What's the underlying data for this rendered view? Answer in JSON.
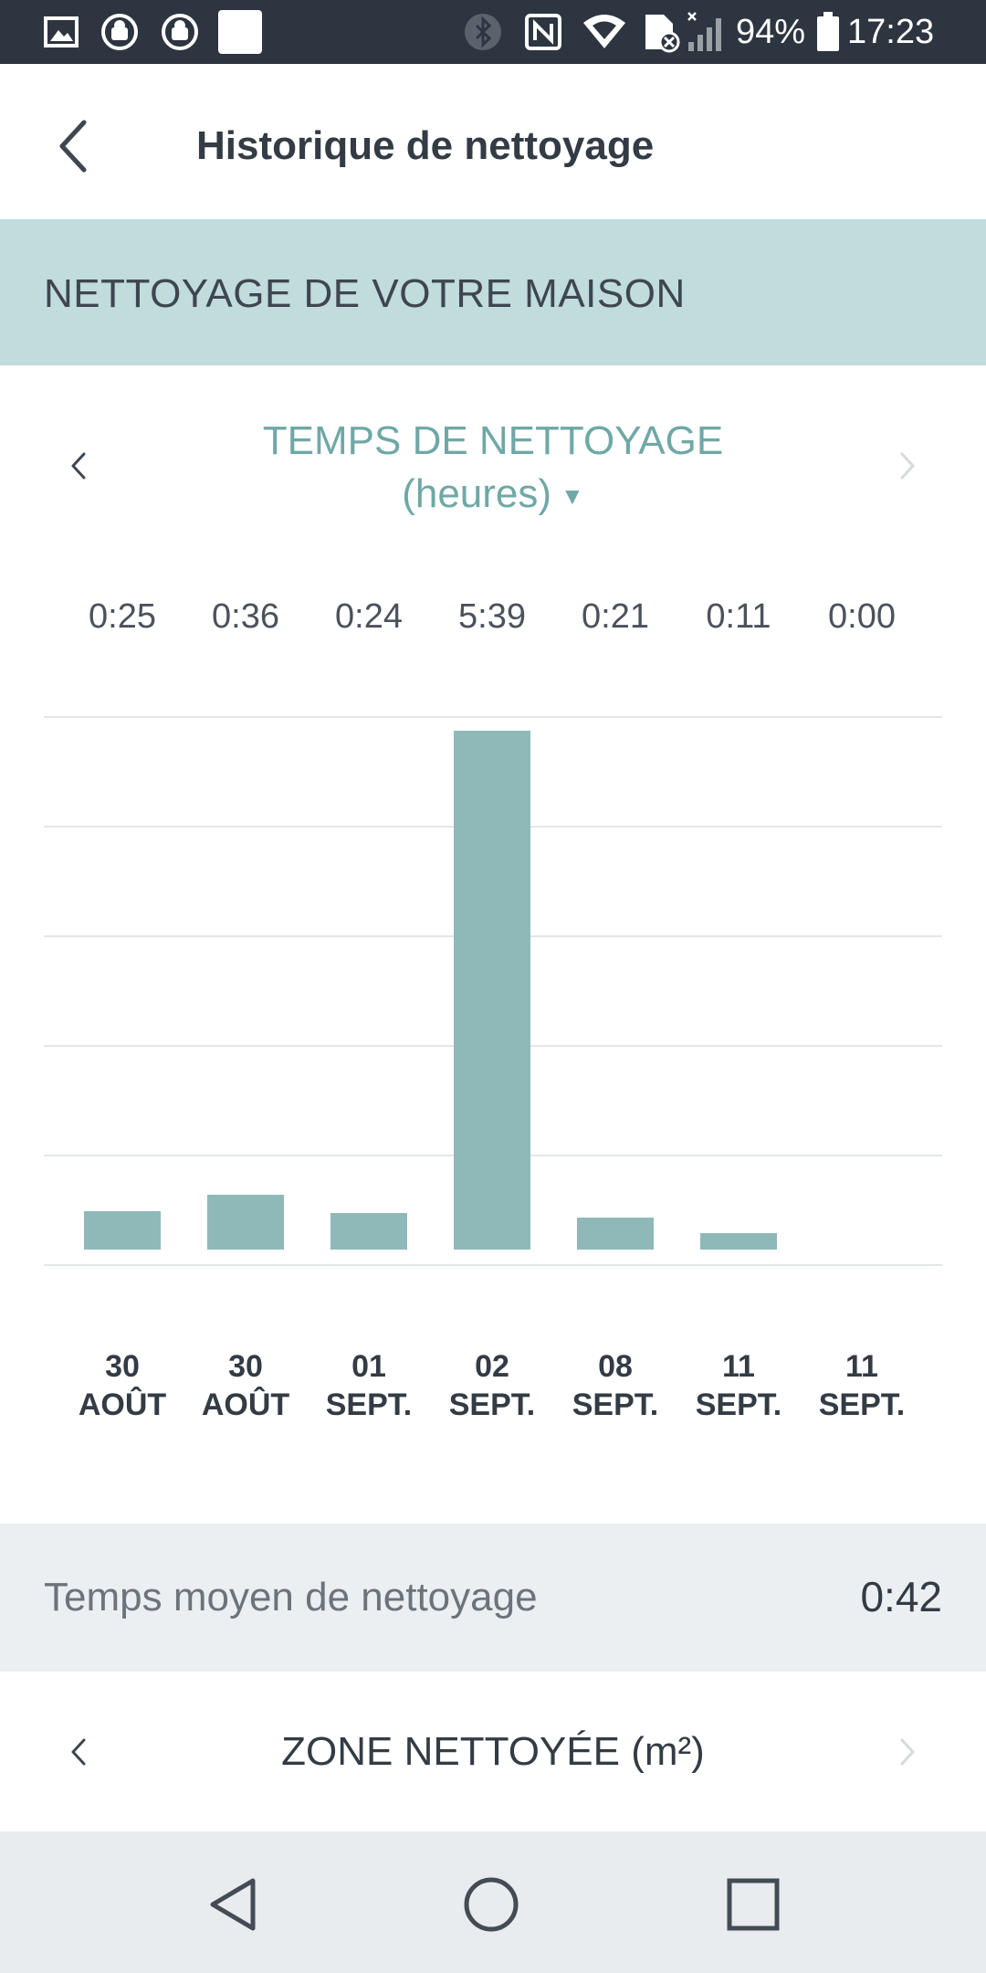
{
  "status_bar": {
    "battery": "94%",
    "time": "17:23",
    "icons": [
      "gallery-icon",
      "android-sync-icon",
      "android-sync-icon",
      "blank-notification-icon",
      "bluetooth-icon",
      "nfc-icon",
      "wifi-icon",
      "sim-off-icon",
      "signal-icon",
      "battery-icon"
    ]
  },
  "app_bar": {
    "title": "Historique de nettoyage",
    "back_icon": "chevron-left-icon"
  },
  "section": {
    "title": "NETTOYAGE DE VOTRE MAISON"
  },
  "metric": {
    "title": "TEMPS DE NETTOYAGE",
    "unit": "(heures)",
    "dropdown_icon": "caret-down-icon",
    "accent_color": "#6fa8a6"
  },
  "chart_data": {
    "type": "bar",
    "categories": [
      "30 AOÛT",
      "30 AOÛT",
      "01 SEPT.",
      "02 SEPT.",
      "08 SEPT.",
      "11 SEPT.",
      "11 SEPT."
    ],
    "date_lines": [
      [
        "30",
        "AOÛT"
      ],
      [
        "30",
        "AOÛT"
      ],
      [
        "01",
        "SEPT."
      ],
      [
        "02",
        "SEPT."
      ],
      [
        "08",
        "SEPT."
      ],
      [
        "11",
        "SEPT."
      ],
      [
        "11",
        "SEPT."
      ]
    ],
    "value_labels": [
      "0:25",
      "0:36",
      "0:24",
      "5:39",
      "0:21",
      "0:11",
      "0:00"
    ],
    "values": [
      0.4167,
      0.6,
      0.4,
      5.65,
      0.35,
      0.1833,
      0
    ],
    "ylim": [
      0,
      5.8
    ],
    "grid": true,
    "bar_color": "#8fb9b9"
  },
  "average": {
    "label": "Temps moyen de nettoyage",
    "value": "0:42"
  },
  "next_metric": {
    "title": "ZONE NETTOYÉE (m²)"
  },
  "nav_bar": {
    "back": "triangle-back-icon",
    "home": "circle-home-icon",
    "recents": "square-recents-icon"
  }
}
